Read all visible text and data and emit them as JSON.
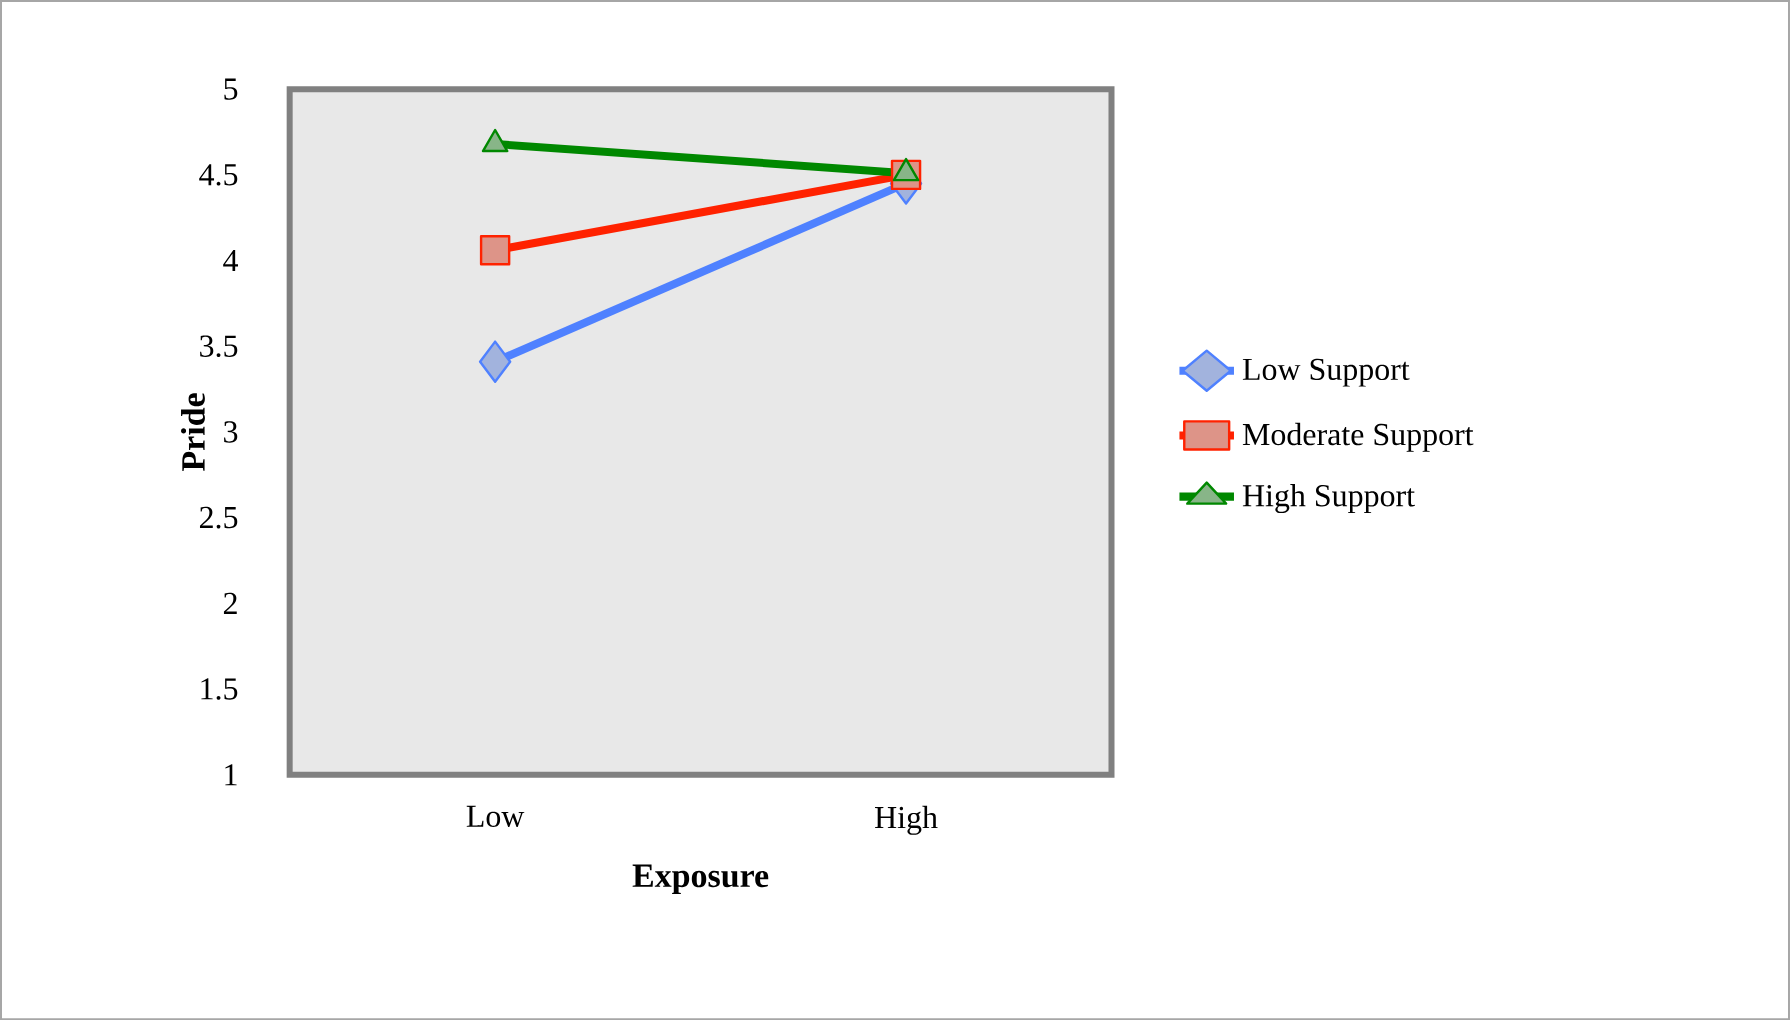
{
  "chart_data": {
    "type": "line",
    "xlabel": "Exposure",
    "ylabel": "Pride",
    "categories": [
      "Low",
      "High"
    ],
    "series": [
      {
        "name": "Low Support",
        "color": "#4f81ff",
        "marker": "diamond",
        "values": [
          3.41,
          4.45
        ]
      },
      {
        "name": "Moderate Support",
        "color": "#ff2200",
        "marker": "square",
        "values": [
          4.06,
          4.5
        ]
      },
      {
        "name": "High Support",
        "color": "#008800",
        "marker": "triangle",
        "values": [
          4.68,
          4.51
        ]
      }
    ],
    "ylim": [
      1,
      5
    ],
    "yticks": [
      1,
      1.5,
      2,
      2.5,
      3,
      3.5,
      4,
      4.5,
      5
    ],
    "legend": "right",
    "grid": false
  }
}
